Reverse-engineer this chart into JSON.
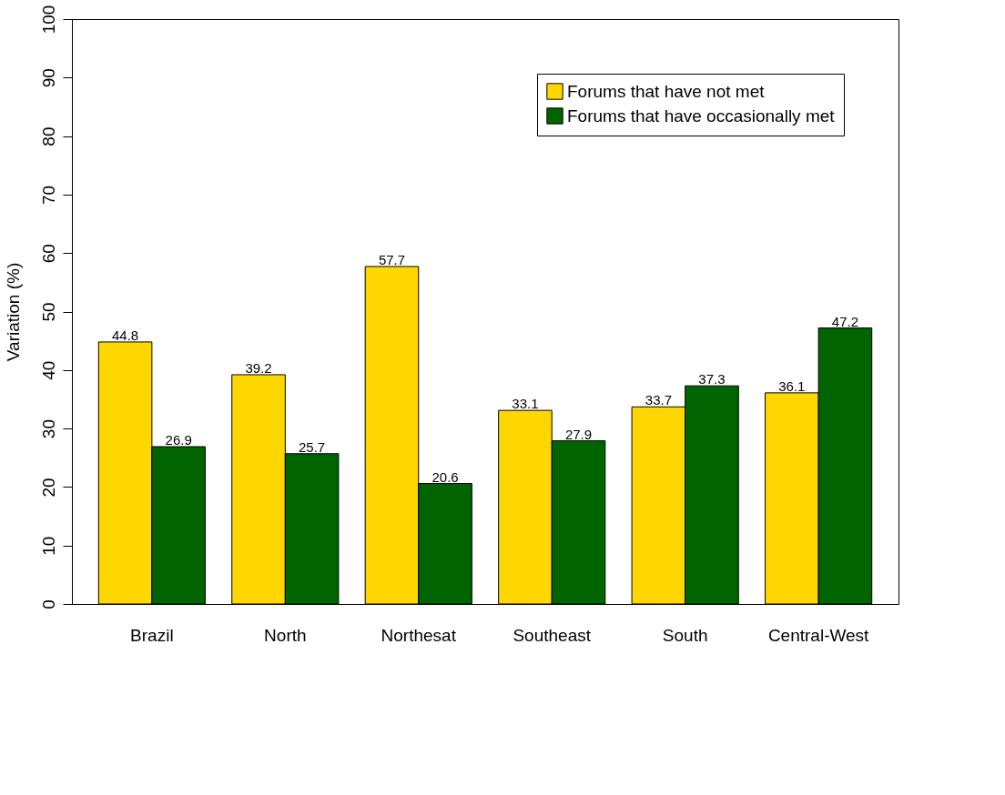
{
  "chart_data": {
    "type": "bar",
    "ylabel": "Variation (%)",
    "categories": [
      "Brazil",
      "North",
      "Northesat",
      "Southeast",
      "South",
      "Central-West"
    ],
    "series": [
      {
        "name": "Forums that have not met",
        "color": "#ffd700",
        "values": [
          44.8,
          39.2,
          57.7,
          33.1,
          33.7,
          36.1
        ]
      },
      {
        "name": "Forums that have occasionally met",
        "color": "#006400",
        "values": [
          26.9,
          25.7,
          20.6,
          27.9,
          37.3,
          47.2
        ]
      }
    ],
    "ylim": [
      0,
      100
    ],
    "yticks": [
      0,
      10,
      20,
      30,
      40,
      50,
      60,
      70,
      80,
      90,
      100
    ],
    "data_labels": true,
    "legend": "top right"
  }
}
